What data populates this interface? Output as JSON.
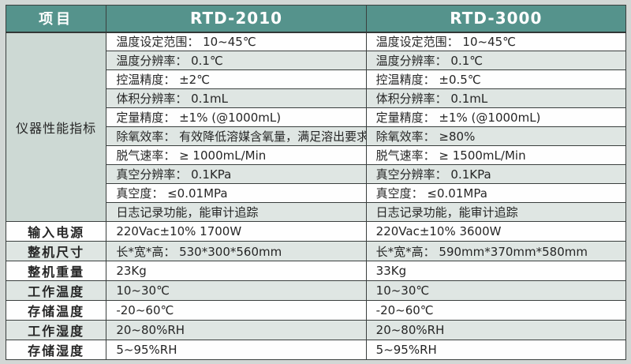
{
  "colors": {
    "header_bg": "#55938c",
    "header_text": "#ffffff",
    "stripe_row_bg": "#dfe6e3",
    "plain_row_bg": "#fefefe",
    "group_cell_bg": "#cdd9d4",
    "border": "#3a3f3e",
    "outer_bg": "#d2d7d5",
    "body_text": "#262626"
  },
  "table": {
    "headers": [
      "项目",
      "RTD-2010",
      "RTD-3000"
    ],
    "group_label": "仪器性能指标",
    "performance_rows": [
      {
        "rtd2010": "温度设定范围： 10~45℃",
        "rtd3000": "温度设定范围： 10~45℃"
      },
      {
        "rtd2010": "温度分辨率： 0.1℃",
        "rtd3000": "温度分辨率： 0.1℃"
      },
      {
        "rtd2010": "控温精度： ±2℃",
        "rtd3000": "控温精度： ±0.5℃"
      },
      {
        "rtd2010": "体积分辨率： 0.1mL",
        "rtd3000": "体积分辨率： 0.1mL"
      },
      {
        "rtd2010": "定量精度： ±1% (@1000mL)",
        "rtd3000": "定量精度： ±1% (@1000mL)"
      },
      {
        "rtd2010": "除氧效率： 有效降低溶媒含氧量，满足溶出要求",
        "rtd3000": "除氧效率： ≥80%"
      },
      {
        "rtd2010": "脱气速率： ≥ 1000mL/Min",
        "rtd3000": "脱气速率： ≥ 1500mL/Min"
      },
      {
        "rtd2010": "真空分辨率： 0.1KPa",
        "rtd3000": "真空分辨率： 0.1KPa"
      },
      {
        "rtd2010": "真空度： ≤0.01MPa",
        "rtd3000": "真空度： ≤0.01MPa"
      },
      {
        "rtd2010": "日志记录功能，能审计追踪",
        "rtd3000": "日志记录功能，能审计追踪"
      }
    ],
    "spec_rows": [
      {
        "label": "输入电源",
        "rtd2010": "220Vac±10% 1700W",
        "rtd3000": "220Vac±10% 3600W"
      },
      {
        "label": "整机尺寸",
        "rtd2010": "长*宽*高： 530*300*560mm",
        "rtd3000": "长*宽*高： 590mm*370mm*580mm"
      },
      {
        "label": "整机重量",
        "rtd2010": "23Kg",
        "rtd3000": "33Kg"
      },
      {
        "label": "工作温度",
        "rtd2010": "10~30℃",
        "rtd3000": "10~30℃"
      },
      {
        "label": "存储温度",
        "rtd2010": "-20~60℃",
        "rtd3000": "-20~60℃"
      },
      {
        "label": "工作湿度",
        "rtd2010": "20~80%RH",
        "rtd3000": "20~80%RH"
      },
      {
        "label": "存储湿度",
        "rtd2010": "5~95%RH",
        "rtd3000": "5~95%RH"
      }
    ]
  }
}
